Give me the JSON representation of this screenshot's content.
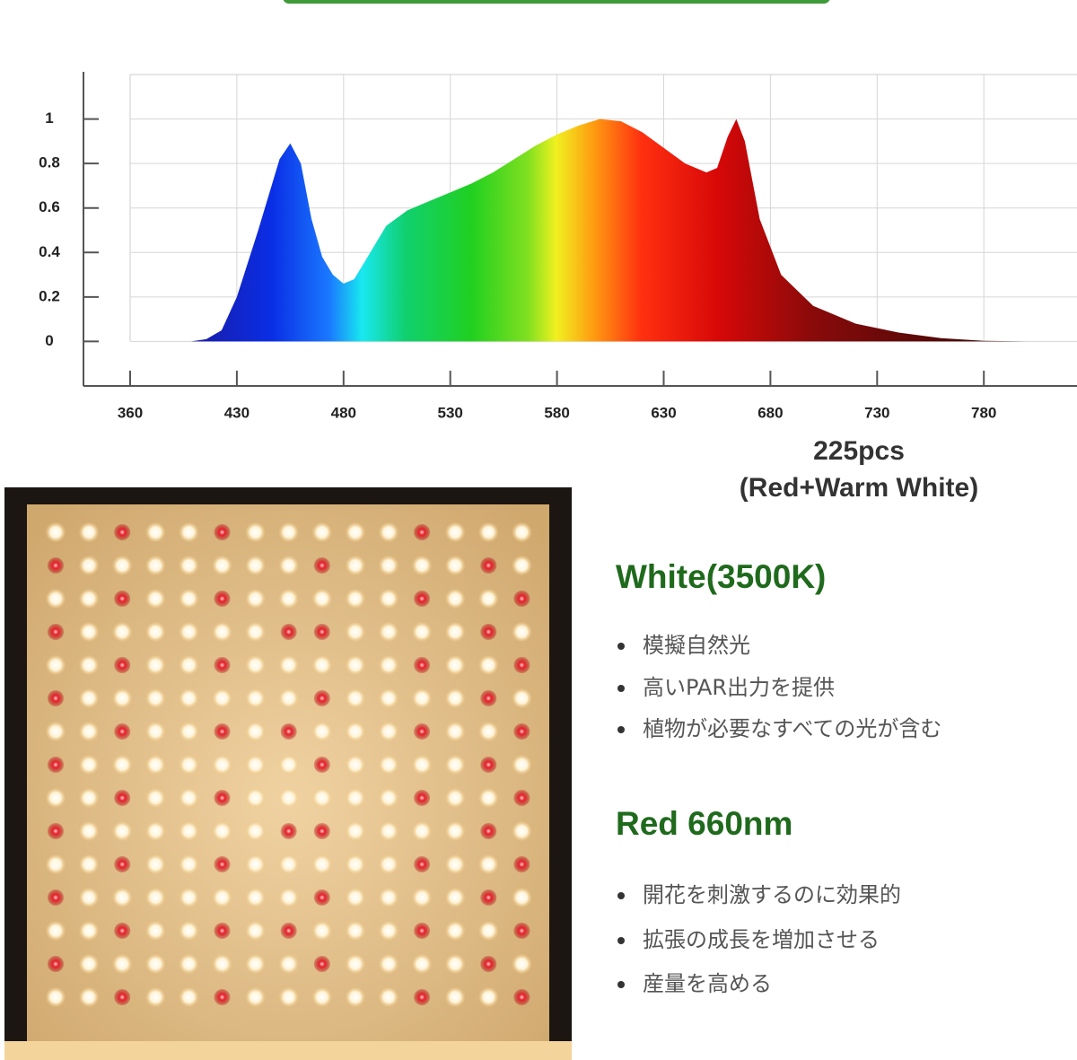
{
  "chart_data": {
    "type": "area",
    "x": [
      400,
      410,
      420,
      430,
      440,
      450,
      455,
      460,
      465,
      470,
      475,
      480,
      485,
      490,
      500,
      510,
      520,
      530,
      540,
      550,
      560,
      570,
      580,
      590,
      600,
      610,
      620,
      630,
      640,
      650,
      655,
      660,
      664,
      668,
      675,
      685,
      700,
      720,
      740,
      760,
      780,
      800
    ],
    "values": [
      0,
      0.01,
      0.05,
      0.2,
      0.5,
      0.82,
      0.89,
      0.8,
      0.55,
      0.38,
      0.3,
      0.26,
      0.28,
      0.36,
      0.52,
      0.59,
      0.63,
      0.67,
      0.71,
      0.76,
      0.82,
      0.88,
      0.93,
      0.97,
      1.0,
      0.99,
      0.94,
      0.87,
      0.8,
      0.76,
      0.78,
      0.92,
      1.0,
      0.9,
      0.55,
      0.3,
      0.16,
      0.08,
      0.04,
      0.015,
      0.003,
      0
    ],
    "xlim": [
      360,
      824
    ],
    "xticks": [
      360,
      430,
      480,
      530,
      580,
      630,
      680,
      730,
      780
    ],
    "ylim": [
      -0.2,
      1.2
    ],
    "yticks": [
      0,
      0.2,
      0.4,
      0.6,
      0.8,
      1
    ],
    "grid": true
  },
  "caption": {
    "count": "225pcs",
    "composition": "(Red+Warm White)"
  },
  "sections": [
    {
      "title": "White(3500K)",
      "bullets": [
        "模擬自然光",
        "高いPAR出力を提供",
        "植物が必要なすべての光が含む"
      ]
    },
    {
      "title": "Red 660nm",
      "bullets": [
        "開花を刺激するのに効果的",
        "拡張の成長を増加させる",
        "産量を高める"
      ]
    }
  ]
}
